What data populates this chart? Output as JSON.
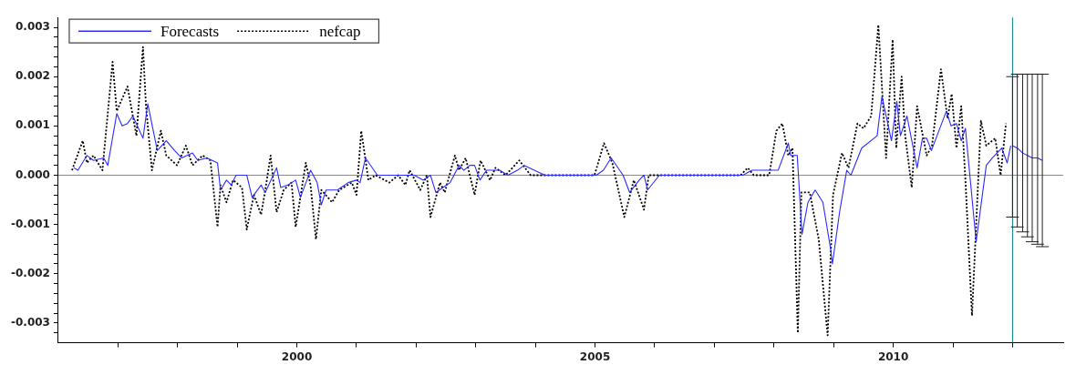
{
  "chart_data": {
    "type": "line",
    "xlim": [
      1996,
      2012.85
    ],
    "ylim": [
      -0.0034,
      0.0032
    ],
    "xticks": [
      {
        "value": 1997,
        "label": null
      },
      {
        "value": 1998,
        "label": null
      },
      {
        "value": 1999,
        "label": null
      },
      {
        "value": 2000,
        "label": "2000"
      },
      {
        "value": 2001,
        "label": null
      },
      {
        "value": 2002,
        "label": null
      },
      {
        "value": 2003,
        "label": null
      },
      {
        "value": 2004,
        "label": null
      },
      {
        "value": 2005,
        "label": "2005"
      },
      {
        "value": 2006,
        "label": null
      },
      {
        "value": 2007,
        "label": null
      },
      {
        "value": 2008,
        "label": null
      },
      {
        "value": 2009,
        "label": null
      },
      {
        "value": 2010,
        "label": "2010"
      },
      {
        "value": 2011,
        "label": null
      },
      {
        "value": 2012,
        "label": null
      }
    ],
    "yticks": [
      {
        "value": -0.0032,
        "label": null
      },
      {
        "value": -0.003,
        "label": "-0.003"
      },
      {
        "value": -0.0028,
        "label": null
      },
      {
        "value": -0.0026,
        "label": null
      },
      {
        "value": -0.0024,
        "label": null
      },
      {
        "value": -0.0022,
        "label": null
      },
      {
        "value": -0.002,
        "label": "-0.002"
      },
      {
        "value": -0.0018,
        "label": null
      },
      {
        "value": -0.0016,
        "label": null
      },
      {
        "value": -0.0014,
        "label": null
      },
      {
        "value": -0.0012,
        "label": null
      },
      {
        "value": -0.001,
        "label": "-0.001"
      },
      {
        "value": -0.0008,
        "label": null
      },
      {
        "value": -0.0006,
        "label": null
      },
      {
        "value": -0.0004,
        "label": null
      },
      {
        "value": -0.0002,
        "label": null
      },
      {
        "value": 0,
        "label": "0.000"
      },
      {
        "value": 0.0002,
        "label": null
      },
      {
        "value": 0.0004,
        "label": null
      },
      {
        "value": 0.0006,
        "label": null
      },
      {
        "value": 0.0008,
        "label": null
      },
      {
        "value": 0.001,
        "label": "0.001"
      },
      {
        "value": 0.0012,
        "label": null
      },
      {
        "value": 0.0014,
        "label": null
      },
      {
        "value": 0.0016,
        "label": null
      },
      {
        "value": 0.0018,
        "label": null
      },
      {
        "value": 0.002,
        "label": "0.002"
      },
      {
        "value": 0.0022,
        "label": null
      },
      {
        "value": 0.0024,
        "label": null
      },
      {
        "value": 0.0026,
        "label": null
      },
      {
        "value": 0.0028,
        "label": null
      },
      {
        "value": 0.003,
        "label": "0.003"
      }
    ],
    "grid": false,
    "legend": "top left",
    "ref_lines": [
      {
        "axis": "y",
        "value": 0,
        "color": "#888888"
      },
      {
        "axis": "x",
        "value": 2012,
        "color": "#008080"
      }
    ],
    "series": [
      {
        "name": "Forecasts",
        "color": "#2b2bff",
        "line_style": "solid",
        "x": [
          1996.26,
          1996.33,
          1996.48,
          1996.59,
          1996.76,
          1996.83,
          1996.98,
          1997.07,
          1997.16,
          1997.25,
          1997.42,
          1997.5,
          1997.66,
          1997.81,
          1997.95,
          1998.07,
          1998.25,
          1998.34,
          1998.49,
          1998.67,
          1998.72,
          1998.82,
          1998.9,
          1998.98,
          1999.16,
          1999.25,
          1999.4,
          1999.47,
          1999.66,
          1999.73,
          1999.85,
          1999.98,
          2000.06,
          2000.23,
          2000.34,
          2000.41,
          2000.49,
          2000.68,
          2000.86,
          2001.0,
          2001.06,
          2001.15,
          2001.35,
          2001.5,
          2001.65,
          2001.82,
          2001.97,
          2002.12,
          2002.24,
          2002.33,
          2002.45,
          2002.57,
          2002.72,
          2002.8,
          2002.9,
          2002.98,
          2003.07,
          2003.18,
          2003.31,
          2003.4,
          2003.54,
          2003.7,
          2003.81,
          2004.16,
          2004.31,
          2005.02,
          2005.14,
          2005.27,
          2005.47,
          2005.58,
          2005.74,
          2005.82,
          2005.88,
          2006.08,
          2006.23,
          2007.48,
          2007.63,
          2007.74,
          2007.93,
          2008.07,
          2008.24,
          2008.28,
          2008.39,
          2008.47,
          2008.57,
          2008.69,
          2008.82,
          2008.95,
          2008.98,
          2009.1,
          2009.22,
          2009.29,
          2009.47,
          2009.73,
          2009.81,
          2009.97,
          2010.06,
          2010.12,
          2010.23,
          2010.4,
          2010.49,
          2010.56,
          2010.64,
          2010.89,
          2010.97,
          2011.06,
          2011.14,
          2011.21,
          2011.39,
          2011.56,
          2011.66,
          2011.82,
          2011.91,
          2011.97
        ],
        "values": [
          0.00015,
          0.0001,
          0.0004,
          0.0003,
          0.00035,
          0.0002,
          0.00125,
          0.001,
          0.00105,
          0.0012,
          0.00075,
          0.00145,
          0.0005,
          0.0007,
          0.0005,
          0.00035,
          0.00045,
          0.0003,
          0.00035,
          0.00025,
          -0.0003,
          -0.0001,
          -0.0002,
          0,
          0,
          -0.00045,
          -0.0002,
          -0.00035,
          0.00015,
          -0.00025,
          -0.0002,
          -0.0001,
          -0.00045,
          0.0001,
          -0.00015,
          -0.0006,
          -0.0003,
          -0.0003,
          -0.00015,
          -0.0001,
          -0.00015,
          0.00035,
          0,
          0,
          0,
          0,
          0,
          -0.0001,
          0,
          -0.00035,
          -0.00025,
          -0.00015,
          0.0002,
          0.0001,
          0.0002,
          0.0002,
          -0.0001,
          0.0001,
          0.0001,
          0.0001,
          0,
          0.0001,
          0.0002,
          0,
          0,
          0,
          0.0001,
          0.00035,
          0,
          -0.00035,
          -0.0001,
          0,
          -0.0003,
          0,
          0,
          0,
          0.0001,
          0.0001,
          0.0001,
          0.0001,
          0.00065,
          0.0004,
          0.0004,
          -0.0012,
          -0.00055,
          -0.0003,
          -0.00055,
          -0.0015,
          -0.0018,
          -0.00075,
          0.0001,
          0,
          0.00055,
          0.0008,
          0.0016,
          0.0007,
          0.0015,
          0.0008,
          0.0012,
          0.00015,
          0.00075,
          0.00075,
          0.0005,
          0.0013,
          0.001,
          0.00105,
          0.0007,
          0.00095,
          -0.00135,
          0.0002,
          0.00035,
          0.00055,
          0.00025,
          0.0006
        ]
      },
      {
        "name": "nefcap",
        "color": "#000000",
        "line_style": "dotted",
        "x": [
          1996.23,
          1996.41,
          1996.48,
          1996.59,
          1996.74,
          1996.91,
          1996.98,
          1997.16,
          1997.31,
          1997.42,
          1997.47,
          1997.57,
          1997.72,
          1997.81,
          1997.99,
          1998.14,
          1998.25,
          1998.42,
          1998.55,
          1998.67,
          1998.72,
          1998.82,
          1998.93,
          1999.08,
          1999.16,
          1999.28,
          1999.4,
          1999.47,
          1999.56,
          1999.66,
          1999.78,
          1999.91,
          1999.98,
          2000.15,
          2000.23,
          2000.32,
          2000.41,
          2000.59,
          2000.71,
          2000.92,
          2001.0,
          2001.08,
          2001.2,
          2001.32,
          2001.55,
          2001.7,
          2001.82,
          2001.89,
          2002.07,
          2002.18,
          2002.24,
          2002.4,
          2002.48,
          2002.65,
          2002.72,
          2002.83,
          2002.98,
          2003.08,
          2003.24,
          2003.33,
          2003.5,
          2003.73,
          2003.92,
          2004.16,
          2004.26,
          2004.99,
          2005.15,
          2005.29,
          2005.49,
          2005.65,
          2005.82,
          2005.9,
          2006.03,
          2006.23,
          2007.44,
          2007.56,
          2007.66,
          2007.92,
          2008.04,
          2008.14,
          2008.24,
          2008.31,
          2008.4,
          2008.46,
          2008.6,
          2008.75,
          2008.9,
          2008.99,
          2009.14,
          2009.25,
          2009.4,
          2009.5,
          2009.63,
          2009.75,
          2009.88,
          2009.99,
          2010.05,
          2010.14,
          2010.2,
          2010.31,
          2010.4,
          2010.56,
          2010.65,
          2010.8,
          2010.91,
          2010.98,
          2011.06,
          2011.14,
          2011.21,
          2011.32,
          2011.47,
          2011.56,
          2011.71,
          2011.8,
          2011.89
        ],
        "values": [
          0.0001,
          0.0007,
          0.00025,
          0.0004,
          0.0001,
          0.0023,
          0.0013,
          0.0018,
          0.0008,
          0.0026,
          0.0014,
          0.0001,
          0.0009,
          0.0004,
          0.0002,
          0.0006,
          0.0002,
          0.0004,
          0.0003,
          -0.00105,
          -0.0002,
          -0.00055,
          -0.0001,
          -0.00025,
          -0.0011,
          -0.0004,
          -0.0008,
          -0.0003,
          0.0004,
          -0.00075,
          -0.0003,
          -0.00015,
          -0.00105,
          0.00025,
          -0.0002,
          -0.0013,
          -0.0003,
          -0.00055,
          -0.0003,
          -0.00015,
          -0.0004,
          0.0009,
          -0.0001,
          0,
          -0.00015,
          0,
          -0.0002,
          0.0001,
          -0.0003,
          0,
          -0.00085,
          -0.00015,
          -0.00035,
          0.0004,
          0.0001,
          0.00035,
          -0.0004,
          0.0003,
          -0.0001,
          0.00015,
          0,
          0.0003,
          0,
          0,
          0,
          0,
          0.00065,
          0.00025,
          -0.00085,
          -0.0001,
          -0.0007,
          0,
          0,
          0,
          0,
          0.00015,
          0,
          0,
          0.0009,
          0.00105,
          0.0004,
          0.00055,
          -0.0032,
          -0.00035,
          -0.00035,
          -0.0013,
          -0.00325,
          -0.0004,
          0.00045,
          0.00015,
          0.00105,
          0.00095,
          0.0012,
          0.00305,
          0.00035,
          0.00275,
          0.00055,
          0.002,
          0.0008,
          -0.00025,
          0.0014,
          0.0004,
          0.0006,
          0.00215,
          0.00115,
          0.00165,
          0.00055,
          0.0014,
          -0.0001,
          -0.00285,
          0.0011,
          0.0006,
          0.00075,
          0,
          0.00105
        ]
      },
      {
        "color": "#2b2bff",
        "line_style": "solid",
        "x": [
          2012,
          2012.08,
          2012.17,
          2012.25,
          2012.33,
          2012.42,
          2012.5
        ],
        "values": [
          0.0006,
          0.00055,
          0.00045,
          0.0004,
          0.00035,
          0.00035,
          0.0003
        ],
        "errors": [
          [
            -0.00085,
            0.002
          ],
          [
            -0.00105,
            0.00205
          ],
          [
            -0.00115,
            0.00205
          ],
          [
            -0.00125,
            0.00205
          ],
          [
            -0.00135,
            0.00205
          ],
          [
            -0.0014,
            0.00205
          ],
          [
            -0.00145,
            0.00205
          ]
        ]
      }
    ]
  }
}
